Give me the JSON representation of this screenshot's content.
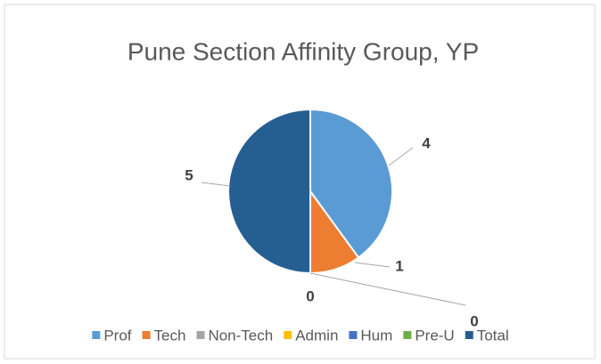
{
  "chart_data": {
    "type": "pie",
    "title": "Pune Section Affinity Group, YP",
    "categories": [
      "Prof",
      "Tech",
      "Non-Tech",
      "Admin",
      "Hum",
      "Pre-U",
      "Total"
    ],
    "values": [
      4,
      1,
      0,
      0,
      0,
      0,
      5
    ],
    "value_labels": [
      "4",
      "1",
      "0",
      "0",
      null,
      null,
      "5"
    ],
    "colors": [
      "#5b9bd5",
      "#ed7d31",
      "#a5a5a5",
      "#ffc000",
      "#4472c4",
      "#70ad47",
      "#255e91"
    ],
    "legend": "bottom"
  }
}
